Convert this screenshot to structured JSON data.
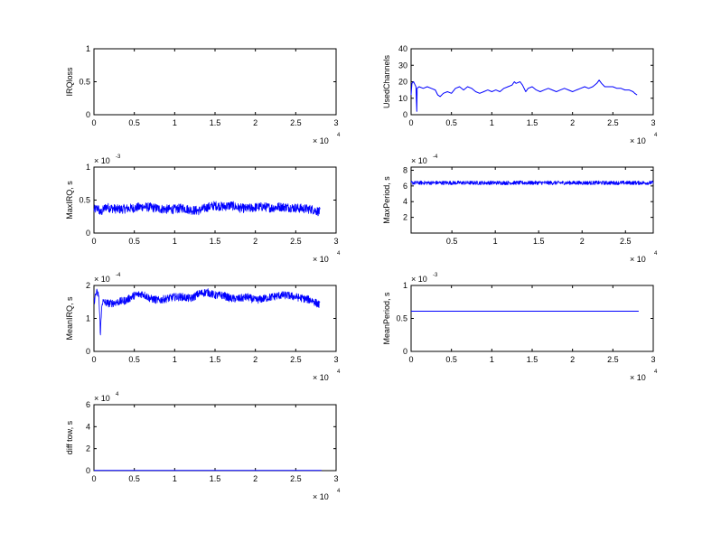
{
  "chart_data": [
    {
      "type": "line",
      "ylabel": "IRQloss",
      "xlim": [
        0,
        3
      ],
      "ylim": [
        0,
        1
      ],
      "xticks": [
        "0",
        "0.5",
        "1",
        "1.5",
        "2",
        "2.5",
        "3"
      ],
      "yticks": [
        "0",
        "0.5",
        "1"
      ],
      "x_multiplier": {
        "base": "× 10",
        "exp": "4"
      },
      "y_multiplier": null,
      "series": [
        {
          "points": [],
          "color": "#0000ff"
        }
      ]
    },
    {
      "type": "line",
      "ylabel": "UsedChannels",
      "xlim": [
        0,
        3
      ],
      "ylim": [
        0,
        40
      ],
      "xticks": [
        "0",
        "0.5",
        "1",
        "1.5",
        "2",
        "2.5",
        "3"
      ],
      "yticks": [
        "0",
        "10",
        "20",
        "30",
        "40"
      ],
      "x_multiplier": {
        "base": "× 10",
        "exp": "4"
      },
      "y_multiplier": null,
      "series": [
        {
          "color": "#0000ff",
          "points": [
            [
              0.0,
              12
            ],
            [
              0.01,
              19
            ],
            [
              0.03,
              20
            ],
            [
              0.05,
              18
            ],
            [
              0.06,
              17
            ],
            [
              0.07,
              2
            ],
            [
              0.075,
              16
            ],
            [
              0.1,
              17
            ],
            [
              0.15,
              16
            ],
            [
              0.2,
              17
            ],
            [
              0.25,
              16
            ],
            [
              0.3,
              15
            ],
            [
              0.33,
              12
            ],
            [
              0.36,
              11
            ],
            [
              0.4,
              13
            ],
            [
              0.45,
              14
            ],
            [
              0.5,
              13
            ],
            [
              0.55,
              16
            ],
            [
              0.6,
              17
            ],
            [
              0.65,
              15
            ],
            [
              0.7,
              17
            ],
            [
              0.75,
              16
            ],
            [
              0.8,
              14
            ],
            [
              0.85,
              13
            ],
            [
              0.9,
              14
            ],
            [
              0.95,
              15
            ],
            [
              1.0,
              14
            ],
            [
              1.05,
              15
            ],
            [
              1.1,
              14
            ],
            [
              1.15,
              16
            ],
            [
              1.2,
              17
            ],
            [
              1.25,
              18
            ],
            [
              1.28,
              20
            ],
            [
              1.3,
              19
            ],
            [
              1.35,
              20
            ],
            [
              1.38,
              18
            ],
            [
              1.42,
              14
            ],
            [
              1.45,
              16
            ],
            [
              1.5,
              17
            ],
            [
              1.55,
              15
            ],
            [
              1.6,
              14
            ],
            [
              1.65,
              15
            ],
            [
              1.7,
              16
            ],
            [
              1.75,
              15
            ],
            [
              1.8,
              14
            ],
            [
              1.85,
              15
            ],
            [
              1.9,
              16
            ],
            [
              1.95,
              15
            ],
            [
              2.0,
              14
            ],
            [
              2.05,
              15
            ],
            [
              2.1,
              16
            ],
            [
              2.15,
              17
            ],
            [
              2.2,
              16
            ],
            [
              2.25,
              17
            ],
            [
              2.3,
              19
            ],
            [
              2.33,
              21
            ],
            [
              2.36,
              19
            ],
            [
              2.4,
              17
            ],
            [
              2.45,
              17
            ],
            [
              2.5,
              17
            ],
            [
              2.55,
              16
            ],
            [
              2.6,
              16
            ],
            [
              2.65,
              15
            ],
            [
              2.7,
              15
            ],
            [
              2.75,
              14
            ],
            [
              2.77,
              13
            ],
            [
              2.8,
              12
            ]
          ]
        }
      ]
    },
    {
      "type": "line",
      "ylabel": "MaxIRQ, s",
      "xlim": [
        0,
        3
      ],
      "ylim": [
        0,
        1
      ],
      "xticks": [
        "0",
        "0.5",
        "1",
        "1.5",
        "2",
        "2.5",
        "3"
      ],
      "yticks": [
        "0",
        "0.5",
        "1"
      ],
      "x_multiplier": {
        "base": "× 10",
        "exp": "4"
      },
      "y_multiplier": {
        "base": "× 10",
        "exp": "-3"
      },
      "series": [
        {
          "color": "#0000ff",
          "noisy_band": true,
          "band": 0.07,
          "points": [
            [
              0.0,
              0.35
            ],
            [
              0.05,
              0.38
            ],
            [
              0.08,
              0.3
            ],
            [
              0.1,
              0.33
            ],
            [
              0.15,
              0.4
            ],
            [
              0.2,
              0.38
            ],
            [
              0.3,
              0.36
            ],
            [
              0.4,
              0.37
            ],
            [
              0.5,
              0.38
            ],
            [
              0.6,
              0.4
            ],
            [
              0.7,
              0.39
            ],
            [
              0.8,
              0.37
            ],
            [
              0.9,
              0.36
            ],
            [
              1.0,
              0.36
            ],
            [
              1.1,
              0.38
            ],
            [
              1.2,
              0.35
            ],
            [
              1.3,
              0.34
            ],
            [
              1.4,
              0.39
            ],
            [
              1.5,
              0.42
            ],
            [
              1.6,
              0.4
            ],
            [
              1.7,
              0.42
            ],
            [
              1.8,
              0.38
            ],
            [
              1.9,
              0.37
            ],
            [
              2.0,
              0.39
            ],
            [
              2.1,
              0.4
            ],
            [
              2.2,
              0.38
            ],
            [
              2.3,
              0.4
            ],
            [
              2.4,
              0.39
            ],
            [
              2.5,
              0.38
            ],
            [
              2.6,
              0.37
            ],
            [
              2.7,
              0.36
            ],
            [
              2.8,
              0.32
            ]
          ]
        }
      ]
    },
    {
      "type": "line",
      "ylabel": "MaxPeriod, s",
      "xlim": [
        0.03,
        2.82
      ],
      "ylim": [
        0,
        8.4
      ],
      "xticks": [
        "0.5",
        "1",
        "1.5",
        "2",
        "2.5"
      ],
      "xtick_values": [
        0.5,
        1,
        1.5,
        2,
        2.5
      ],
      "yticks": [
        "2",
        "4",
        "6",
        "8"
      ],
      "ytick_values": [
        2,
        4,
        6,
        8
      ],
      "x_multiplier": {
        "base": "× 10",
        "exp": "4"
      },
      "y_multiplier": {
        "base": "× 10",
        "exp": "-4"
      },
      "series": [
        {
          "color": "#0000ff",
          "noisy_band": true,
          "band": 0.25,
          "points": [
            [
              0.03,
              6.4
            ],
            [
              2.82,
              6.4
            ]
          ]
        }
      ]
    },
    {
      "type": "line",
      "ylabel": "MeanIRQ, s",
      "xlim": [
        0,
        3
      ],
      "ylim": [
        0,
        2
      ],
      "xticks": [
        "0",
        "0.5",
        "1",
        "1.5",
        "2",
        "2.5",
        "3"
      ],
      "yticks": [
        "0",
        "1",
        "2"
      ],
      "x_multiplier": {
        "base": "× 10",
        "exp": "4"
      },
      "y_multiplier": {
        "base": "× 10",
        "exp": "-4"
      },
      "series": [
        {
          "color": "#0000ff",
          "noisy_band": true,
          "band": 0.12,
          "points": [
            [
              0.0,
              1.5
            ],
            [
              0.03,
              1.8
            ],
            [
              0.06,
              1.7
            ],
            [
              0.08,
              0.55
            ],
            [
              0.1,
              1.5
            ],
            [
              0.2,
              1.45
            ],
            [
              0.3,
              1.5
            ],
            [
              0.4,
              1.55
            ],
            [
              0.5,
              1.7
            ],
            [
              0.6,
              1.75
            ],
            [
              0.7,
              1.6
            ],
            [
              0.8,
              1.55
            ],
            [
              0.9,
              1.6
            ],
            [
              1.0,
              1.65
            ],
            [
              1.1,
              1.65
            ],
            [
              1.2,
              1.6
            ],
            [
              1.3,
              1.75
            ],
            [
              1.4,
              1.8
            ],
            [
              1.5,
              1.7
            ],
            [
              1.6,
              1.7
            ],
            [
              1.7,
              1.6
            ],
            [
              1.8,
              1.6
            ],
            [
              1.9,
              1.65
            ],
            [
              2.0,
              1.55
            ],
            [
              2.1,
              1.6
            ],
            [
              2.2,
              1.65
            ],
            [
              2.3,
              1.7
            ],
            [
              2.4,
              1.7
            ],
            [
              2.5,
              1.65
            ],
            [
              2.6,
              1.6
            ],
            [
              2.7,
              1.55
            ],
            [
              2.8,
              1.4
            ]
          ]
        }
      ]
    },
    {
      "type": "line",
      "ylabel": "MeanPeriod, s",
      "xlim": [
        0,
        3
      ],
      "ylim": [
        0,
        1
      ],
      "xticks": [
        "0",
        "0.5",
        "1",
        "1.5",
        "2",
        "2.5",
        "3"
      ],
      "yticks": [
        "0",
        "0.5",
        "1"
      ],
      "x_multiplier": {
        "base": "× 10",
        "exp": "4"
      },
      "y_multiplier": {
        "base": "× 10",
        "exp": "-3"
      },
      "series": [
        {
          "color": "#0000ff",
          "points": [
            [
              0.0,
              0.61
            ],
            [
              2.82,
              0.61
            ]
          ]
        }
      ]
    },
    {
      "type": "line",
      "ylabel": "diff tow, s",
      "xlim": [
        0,
        3
      ],
      "ylim": [
        0,
        6
      ],
      "xticks": [
        "0",
        "0.5",
        "1",
        "1.5",
        "2",
        "2.5",
        "3"
      ],
      "yticks": [
        "0",
        "2",
        "4",
        "6"
      ],
      "x_multiplier": {
        "base": "× 10",
        "exp": "4"
      },
      "y_multiplier": {
        "base": "× 10",
        "exp": "4"
      },
      "series": [
        {
          "color": "#0000ff",
          "points": [
            [
              0.0,
              0.02
            ],
            [
              2.82,
              0.02
            ]
          ]
        }
      ]
    }
  ]
}
